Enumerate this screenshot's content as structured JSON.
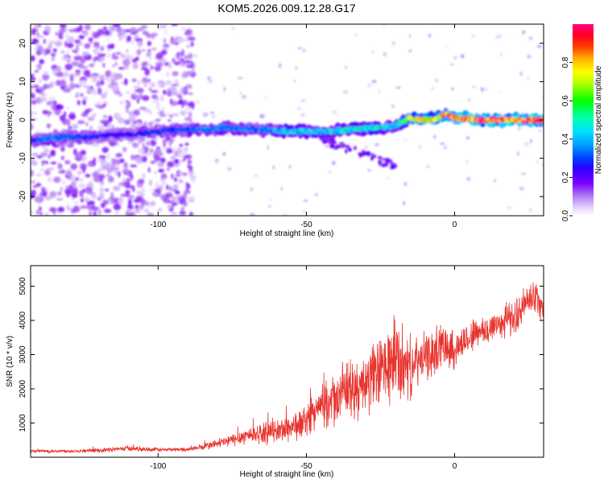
{
  "title": "KOM5.2026.009.12.28.G17",
  "colors": {
    "snr_line": "#e8342e",
    "axis": "#000000",
    "background": "#ffffff"
  },
  "chart_data": [
    {
      "type": "heatmap",
      "xlabel": "Height of straight line (km)",
      "ylabel": "Frequency (Hz)",
      "xlim": [
        -143,
        30
      ],
      "ylim": [
        -25,
        25
      ],
      "x_ticks": [
        -100,
        -50,
        0
      ],
      "y_ticks": [
        -20,
        -10,
        0,
        10,
        20
      ],
      "x_tick_labels": [
        "-100",
        "-50",
        "0"
      ],
      "y_tick_labels": [
        "-20",
        "-10",
        "0",
        "10",
        "20"
      ],
      "colorbar": {
        "label": "Normalized spectral amplitude",
        "range": [
          0,
          1
        ],
        "ticks": [
          0.0,
          0.2,
          0.4,
          0.6,
          0.8
        ],
        "tick_labels": [
          "0.0",
          "0.2",
          "0.4",
          "0.6",
          "0.8"
        ],
        "colormap": [
          "#ffffff",
          "#c9b3f2",
          "#8a2be2",
          "#5a00e0",
          "#0000ff",
          "#00b7ff",
          "#00ffd0",
          "#00ff00",
          "#aaff00",
          "#ffff00",
          "#ff8c00",
          "#ff0000",
          "#ff1493"
        ]
      },
      "ridge": {
        "x": [
          -143,
          -135,
          -125,
          -115,
          -105,
          -95,
          -85,
          -75,
          -65,
          -55,
          -45,
          -35,
          -25,
          -20,
          -15,
          -10,
          -5,
          -3,
          0,
          10,
          20,
          30
        ],
        "freq": [
          -5.5,
          -4.5,
          -4.5,
          -4,
          -3.5,
          -2.5,
          -2.5,
          -2,
          -2.5,
          -3,
          -3,
          -2.5,
          -2,
          -1.5,
          0.5,
          0,
          0.5,
          1.5,
          0.5,
          0,
          0,
          0
        ],
        "amplitude": [
          0.3,
          0.35,
          0.3,
          0.25,
          0.28,
          0.3,
          0.35,
          0.35,
          0.35,
          0.45,
          0.45,
          0.5,
          0.5,
          0.45,
          0.75,
          0.8,
          0.85,
          0.9,
          0.9,
          0.95,
          0.95,
          0.95
        ]
      },
      "grid": false
    },
    {
      "type": "line",
      "xlabel": "Height of straight line (km)",
      "ylabel": "SNR (10 * v/v)",
      "xlim": [
        -143,
        30
      ],
      "ylim": [
        0,
        5600
      ],
      "x_ticks": [
        -100,
        -50,
        0
      ],
      "y_ticks": [
        1000,
        2000,
        3000,
        4000,
        5000
      ],
      "x_tick_labels": [
        "-100",
        "-50",
        "0"
      ],
      "y_tick_labels": [
        "1000",
        "2000",
        "3000",
        "4000",
        "5000"
      ],
      "series": [
        {
          "x": [
            -143,
            -130,
            -120,
            -110,
            -100,
            -90,
            -85,
            -80,
            -75,
            -70,
            -65,
            -60,
            -55,
            -52,
            -50,
            -48,
            -45,
            -42,
            -40,
            -38,
            -35,
            -32,
            -30,
            -28,
            -25,
            -22,
            -20,
            -18,
            -15,
            -12,
            -10,
            -8,
            -5,
            -3,
            0,
            2,
            5,
            8,
            10,
            12,
            15,
            18,
            20,
            22,
            25,
            28,
            30
          ],
          "values": [
            180,
            180,
            200,
            260,
            220,
            230,
            300,
            400,
            500,
            650,
            700,
            750,
            900,
            950,
            1100,
            1300,
            1450,
            1600,
            1700,
            1900,
            2000,
            1900,
            2200,
            2300,
            2500,
            2700,
            2900,
            2700,
            2600,
            2800,
            2900,
            3000,
            3200,
            3400,
            3100,
            3300,
            3500,
            3700,
            3600,
            3800,
            3900,
            4100,
            4000,
            4300,
            4600,
            4700,
            4300
          ],
          "noise": [
            50,
            50,
            60,
            80,
            60,
            60,
            100,
            150,
            200,
            250,
            300,
            350,
            450,
            450,
            500,
            500,
            600,
            700,
            800,
            800,
            900,
            900,
            1000,
            1000,
            1100,
            1200,
            1400,
            1200,
            900,
            700,
            700,
            700,
            700,
            700,
            600,
            500,
            500,
            500,
            500,
            500,
            500,
            500,
            500,
            500,
            500,
            500,
            500
          ]
        }
      ],
      "grid": false
    }
  ]
}
